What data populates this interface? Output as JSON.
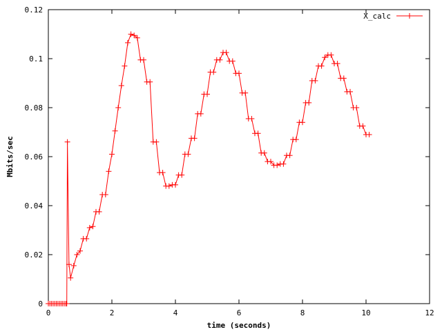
{
  "colors": {
    "series": "#ff0000",
    "axis": "#000000",
    "background": "#ffffff"
  },
  "chart_data": {
    "type": "line",
    "title": "",
    "xlabel": "time (seconds)",
    "ylabel": "Mbits/sec",
    "xlim": [
      0,
      12
    ],
    "ylim": [
      0,
      0.12
    ],
    "xticks": [
      0,
      2,
      4,
      6,
      8,
      10,
      12
    ],
    "yticks": [
      0,
      0.02,
      0.04,
      0.06,
      0.08,
      0.1,
      0.12
    ],
    "xtick_labels": [
      "0",
      "2",
      "4",
      "6",
      "8",
      "10",
      "12"
    ],
    "ytick_labels": [
      "0",
      "0.02",
      "0.04",
      "0.06",
      "0.08",
      "0.1",
      "0.12"
    ],
    "grid": false,
    "legend_position": "top-right",
    "series": [
      {
        "name": "X_calc",
        "marker": "plus",
        "x": [
          0.0,
          0.05,
          0.1,
          0.15,
          0.2,
          0.25,
          0.3,
          0.35,
          0.4,
          0.45,
          0.5,
          0.55,
          0.58,
          0.6,
          0.65,
          0.7,
          0.8,
          0.9,
          1.0,
          1.1,
          1.2,
          1.3,
          1.4,
          1.5,
          1.6,
          1.7,
          1.8,
          1.9,
          2.0,
          2.1,
          2.2,
          2.3,
          2.4,
          2.5,
          2.6,
          2.7,
          2.8,
          2.9,
          3.0,
          3.1,
          3.2,
          3.3,
          3.4,
          3.5,
          3.6,
          3.7,
          3.8,
          3.9,
          4.0,
          4.1,
          4.2,
          4.3,
          4.4,
          4.5,
          4.6,
          4.7,
          4.8,
          4.9,
          5.0,
          5.1,
          5.2,
          5.3,
          5.4,
          5.5,
          5.6,
          5.7,
          5.8,
          5.9,
          6.0,
          6.1,
          6.2,
          6.3,
          6.4,
          6.5,
          6.6,
          6.7,
          6.8,
          6.9,
          7.0,
          7.1,
          7.2,
          7.3,
          7.4,
          7.5,
          7.6,
          7.7,
          7.8,
          7.9,
          8.0,
          8.1,
          8.2,
          8.3,
          8.4,
          8.5,
          8.6,
          8.7,
          8.8,
          8.9,
          9.0,
          9.1,
          9.2,
          9.3,
          9.4,
          9.5,
          9.6,
          9.7,
          9.8,
          9.9,
          10.0,
          10.1
        ],
        "y": [
          0.0,
          0.0,
          0.0,
          0.0,
          0.0,
          0.0,
          0.0,
          0.0,
          0.0,
          0.0,
          0.0,
          0.0,
          0.0,
          0.066,
          0.016,
          0.0105,
          0.0155,
          0.02,
          0.0215,
          0.0265,
          0.0265,
          0.031,
          0.0315,
          0.0375,
          0.0375,
          0.0445,
          0.0445,
          0.054,
          0.061,
          0.0705,
          0.08,
          0.089,
          0.097,
          0.1065,
          0.11,
          0.1095,
          0.1085,
          0.0995,
          0.0995,
          0.0905,
          0.0905,
          0.066,
          0.066,
          0.0535,
          0.0535,
          0.048,
          0.048,
          0.0485,
          0.0485,
          0.0525,
          0.0525,
          0.061,
          0.061,
          0.0675,
          0.0675,
          0.0775,
          0.0775,
          0.0855,
          0.0855,
          0.0945,
          0.0945,
          0.0995,
          0.0995,
          0.1025,
          0.1025,
          0.099,
          0.099,
          0.094,
          0.094,
          0.086,
          0.086,
          0.0755,
          0.0755,
          0.0695,
          0.0695,
          0.0615,
          0.0615,
          0.058,
          0.058,
          0.0565,
          0.0565,
          0.057,
          0.057,
          0.0605,
          0.0605,
          0.067,
          0.067,
          0.074,
          0.074,
          0.082,
          0.082,
          0.091,
          0.091,
          0.097,
          0.097,
          0.1005,
          0.1015,
          0.1015,
          0.098,
          0.098,
          0.092,
          0.092,
          0.0865,
          0.0865,
          0.08,
          0.08,
          0.0725,
          0.0725,
          0.069,
          0.069
        ]
      }
    ]
  }
}
